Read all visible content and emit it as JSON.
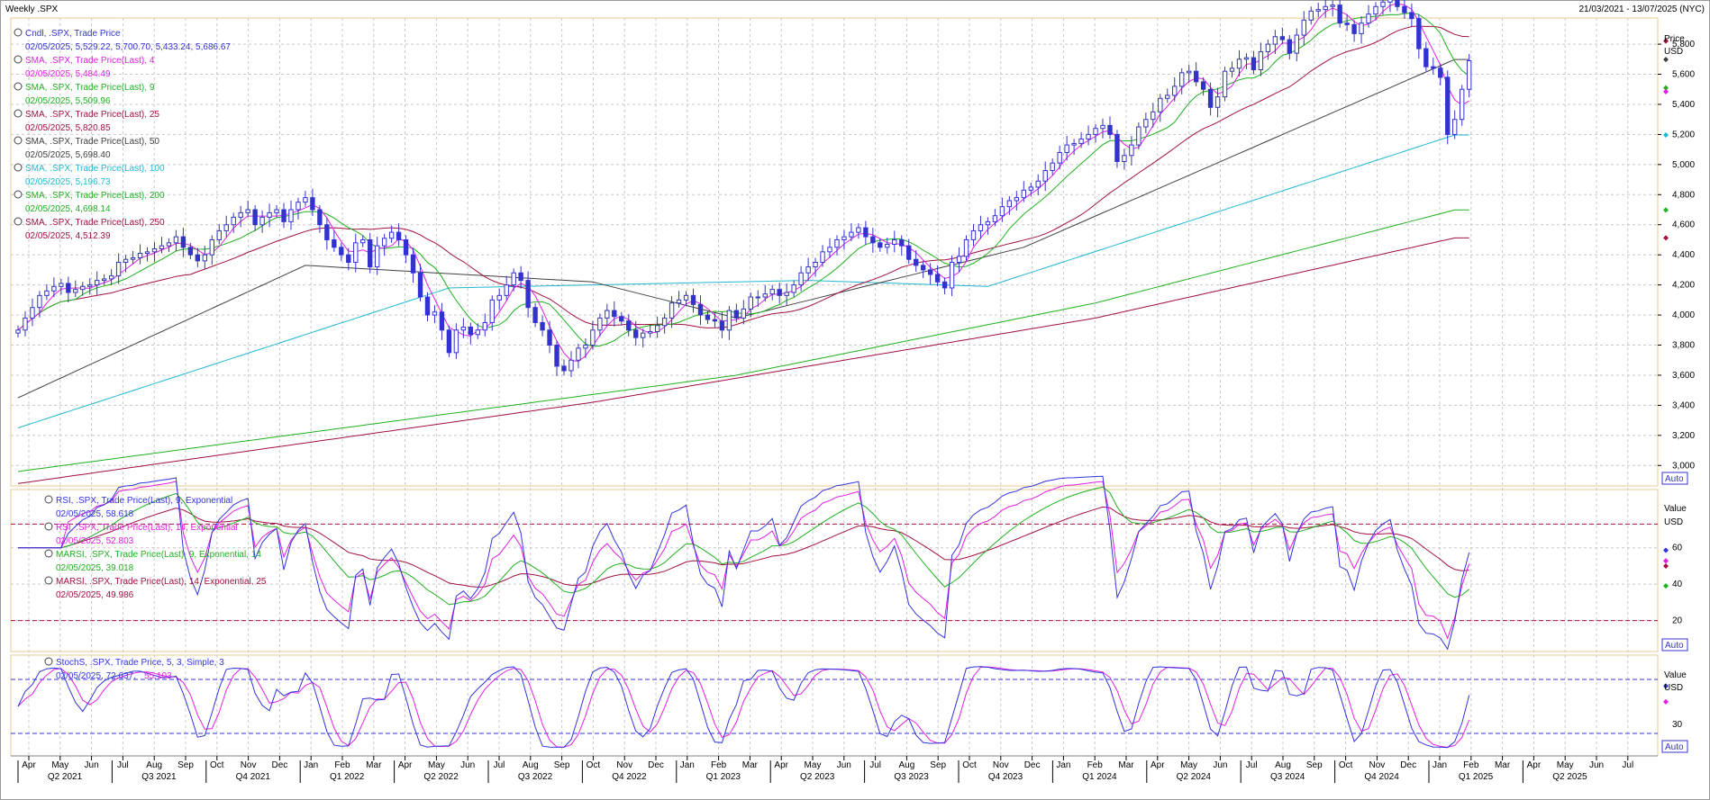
{
  "header": {
    "title": "Weekly .SPX",
    "date_range": "21/03/2021 - 13/07/2025 (NYC)"
  },
  "colors": {
    "candle": "#3333cc",
    "sma4": "#e020e0",
    "sma9": "#20b020",
    "sma25": "#a01040",
    "sma50": "#404040",
    "sma100": "#20b8d0",
    "sma200": "#20b020",
    "sma250": "#a01040",
    "rsi9": "#3333dd",
    "rsi14": "#e020e0",
    "marsi9": "#20b020",
    "marsi14": "#a01040",
    "stochK": "#3333dd",
    "stochD": "#e020e0",
    "grid": "#c8c8c8",
    "panel_border": "#e8c890"
  },
  "legend": {
    "price": [
      {
        "label": "Cndl, .SPX, Trade Price",
        "value": "02/05/2025, 5,529.22, 5,700.70, 5,433.24, 5,686.67",
        "color": "#3333cc"
      },
      {
        "label": "SMA, .SPX, Trade Price(Last), 4",
        "value": "02/05/2025, 5,484.49",
        "color": "#e020e0"
      },
      {
        "label": "SMA, .SPX, Trade Price(Last), 9",
        "value": "02/05/2025, 5,509.96",
        "color": "#20b020"
      },
      {
        "label": "SMA, .SPX, Trade Price(Last), 25",
        "value": "02/05/2025, 5,820.85",
        "color": "#a01040"
      },
      {
        "label": "SMA, .SPX, Trade Price(Last), 50",
        "value": "02/05/2025, 5,698.40",
        "color": "#404040"
      },
      {
        "label": "SMA, .SPX, Trade Price(Last), 100",
        "value": "02/05/2025, 5,196.73",
        "color": "#20b8d0"
      },
      {
        "label": "SMA, .SPX, Trade Price(Last), 200",
        "value": "02/05/2025, 4,698.14",
        "color": "#20b020"
      },
      {
        "label": "SMA, .SPX, Trade Price(Last), 250",
        "value": "02/05/2025, 4,512.39",
        "color": "#a01040"
      }
    ],
    "rsi": [
      {
        "label": "RSI, .SPX, Trade Price(Last), 9, Exponential",
        "value": "02/05/2025, 58.618",
        "color": "#3333dd"
      },
      {
        "label": "RSI, .SPX, Trade Price(Last), 14, Exponential",
        "value": "02/05/2025, 52.803",
        "color": "#e020e0"
      },
      {
        "label": "MARSI, .SPX, Trade Price(Last), 9, Exponential, 14",
        "value": "02/05/2025, 39.018",
        "color": "#20b020"
      },
      {
        "label": "MARSI, .SPX, Trade Price(Last), 14, Exponential, 25",
        "value": "02/05/2025, 49.986",
        "color": "#a01040"
      }
    ],
    "stoch": [
      {
        "label": "StochS, .SPX, Trade Price, 5, 3, Simple, 3",
        "value_k": "02/05/2025, 72.637,",
        "value_d": "55.103",
        "color": "#3333dd",
        "color_d": "#e020e0"
      }
    ]
  },
  "axes": {
    "price": {
      "unit_title": "Price",
      "unit": "USD",
      "ticks": [
        "5,800",
        "5,600",
        "5,400",
        "5,200",
        "5,000",
        "4,800",
        "4,600",
        "4,400",
        "4,200",
        "4,000",
        "3,800",
        "3,600",
        "3,400",
        "3,200",
        "3,000"
      ],
      "auto_label": "Auto"
    },
    "rsi": {
      "unit_title": "Value",
      "unit": "USD",
      "ticks": [
        "60",
        "40",
        "20"
      ],
      "auto_label": "Auto"
    },
    "stoch": {
      "unit_title": "Value",
      "unit": "USD",
      "ticks": [
        "30"
      ],
      "auto_label": "Auto"
    },
    "months": [
      "Apr",
      "May",
      "Jun",
      "Jul",
      "Aug",
      "Sep",
      "Oct",
      "Nov",
      "Dec",
      "Jan",
      "Feb",
      "Mar",
      "Apr",
      "May",
      "Jun",
      "Jul",
      "Aug",
      "Sep",
      "Oct",
      "Nov",
      "Dec",
      "Jan",
      "Feb",
      "Mar",
      "Apr",
      "May",
      "Jun",
      "Jul",
      "Aug",
      "Sep",
      "Oct",
      "Nov",
      "Dec",
      "Jan",
      "Feb",
      "Mar",
      "Apr",
      "May",
      "Jun",
      "Jul",
      "Aug",
      "Sep",
      "Oct",
      "Nov",
      "Dec",
      "Jan",
      "Feb",
      "Mar",
      "Apr",
      "May",
      "Jun",
      "Jul"
    ],
    "quarters": [
      "Q2 2021",
      "Q3 2021",
      "Q4 2021",
      "Q1 2022",
      "Q2 2022",
      "Q3 2022",
      "Q4 2022",
      "Q1 2023",
      "Q2 2023",
      "Q3 2023",
      "Q4 2023",
      "Q1 2024",
      "Q2 2024",
      "Q3 2024",
      "Q4 2024",
      "Q1 2025",
      "Q2 2025"
    ]
  },
  "chart_data": [
    {
      "type": "line",
      "panel": "price",
      "x_start": "2021-03-26",
      "x_step_weeks": 1,
      "ylim": [
        2900,
        5950
      ],
      "series": [
        {
          "name": "Cndl, .SPX, Trade Price",
          "values": [
            3900,
            3980,
            4050,
            4130,
            4160,
            4190,
            4210,
            4150,
            4170,
            4190,
            4200,
            4230,
            4240,
            4260,
            4350,
            4370,
            4380,
            4410,
            4420,
            4440,
            4460,
            4480,
            4520,
            4450,
            4400,
            4360,
            4400,
            4500,
            4560,
            4600,
            4650,
            4680,
            4700,
            4600,
            4650,
            4680,
            4700,
            4620,
            4700,
            4750,
            4780,
            4700,
            4600,
            4500,
            4450,
            4400,
            4350,
            4480,
            4500,
            4320,
            4460,
            4510,
            4550,
            4500,
            4400,
            4280,
            4120,
            4000,
            4020,
            3900,
            3750,
            3900,
            3920,
            3870,
            3900,
            3950,
            4100,
            4130,
            4200,
            4280,
            4230,
            4050,
            3950,
            3900,
            3800,
            3660,
            3630,
            3700,
            3780,
            3800,
            3900,
            3980,
            4030,
            3990,
            3960,
            3900,
            3850,
            3880,
            3890,
            3930,
            3980,
            4080,
            4100,
            4130,
            4070,
            4000,
            3970,
            3960,
            3900,
            4030,
            3980,
            4040,
            4120,
            4120,
            4140,
            4170,
            4130,
            4150,
            4200,
            4280,
            4320,
            4350,
            4420,
            4450,
            4500,
            4520,
            4550,
            4580,
            4520,
            4480,
            4450,
            4470,
            4500,
            4460,
            4370,
            4330,
            4300,
            4270,
            4220,
            4180,
            4350,
            4390,
            4500,
            4560,
            4600,
            4620,
            4660,
            4720,
            4760,
            4780,
            4830,
            4850,
            4890,
            4960,
            5010,
            5080,
            5130,
            5140,
            5170,
            5200,
            5240,
            5260,
            5200,
            5020,
            5060,
            5130,
            5250,
            5300,
            5350,
            5440,
            5460,
            5520,
            5610,
            5620,
            5550,
            5500,
            5380,
            5450,
            5620,
            5640,
            5700,
            5710,
            5630,
            5750,
            5800,
            5850,
            5830,
            5740,
            5860,
            5960,
            6020,
            6030,
            6050,
            6060,
            5940,
            5930,
            5870,
            5940,
            6000,
            6050,
            6080,
            6100,
            6050,
            6010,
            5970,
            5770,
            5650,
            5640,
            5580,
            5200,
            5300,
            5500,
            5690
          ]
        },
        {
          "name": "SMA, .SPX, Trade Price(Last), 4",
          "values": []
        },
        {
          "name": "SMA, .SPX, Trade Price(Last), 9",
          "values": []
        },
        {
          "name": "SMA, .SPX, Trade Price(Last), 25",
          "values": []
        },
        {
          "name": "SMA, .SPX, Trade Price(Last), 50",
          "values": []
        },
        {
          "name": "SMA, .SPX, Trade Price(Last), 100",
          "values": []
        },
        {
          "name": "SMA, .SPX, Trade Price(Last), 200",
          "values": []
        },
        {
          "name": "SMA, .SPX, Trade Price(Last), 250",
          "values": []
        }
      ],
      "sma_anchor_points": {
        "SMA, .SPX, Trade Price(Last), 50": [
          [
            0,
            3450
          ],
          [
            40,
            4330
          ],
          [
            80,
            4220
          ],
          [
            100,
            3980
          ],
          [
            140,
            4450
          ],
          [
            200,
            5698.4
          ]
        ],
        "SMA, .SPX, Trade Price(Last), 100": [
          [
            0,
            3250
          ],
          [
            60,
            4180
          ],
          [
            110,
            4230
          ],
          [
            135,
            4190
          ],
          [
            200,
            5196.73
          ]
        ],
        "SMA, .SPX, Trade Price(Last), 200": [
          [
            0,
            2960
          ],
          [
            100,
            3600
          ],
          [
            150,
            4080
          ],
          [
            200,
            4698.14
          ]
        ],
        "SMA, .SPX, Trade Price(Last), 250": [
          [
            0,
            2880
          ],
          [
            80,
            3420
          ],
          [
            150,
            3980
          ],
          [
            200,
            4512.39
          ]
        ]
      }
    },
    {
      "type": "line",
      "panel": "rsi",
      "ylim": [
        5,
        90
      ],
      "guides": [
        73,
        20
      ],
      "series": [
        {
          "name": "RSI, .SPX, Trade Price(Last), 9, Exponential",
          "last": 58.618
        },
        {
          "name": "RSI, .SPX, Trade Price(Last), 14, Exponential",
          "last": 52.803
        },
        {
          "name": "MARSI, .SPX, Trade Price(Last), 9, Exponential, 14",
          "last": 39.018
        },
        {
          "name": "MARSI, .SPX, Trade Price(Last), 14, Exponential, 25",
          "last": 49.986
        }
      ]
    },
    {
      "type": "line",
      "panel": "stoch",
      "ylim": [
        0,
        100
      ],
      "guides": [
        80,
        20
      ],
      "series": [
        {
          "name": "StochS %K",
          "last": 72.637
        },
        {
          "name": "StochS %D",
          "last": 55.103
        }
      ]
    }
  ]
}
